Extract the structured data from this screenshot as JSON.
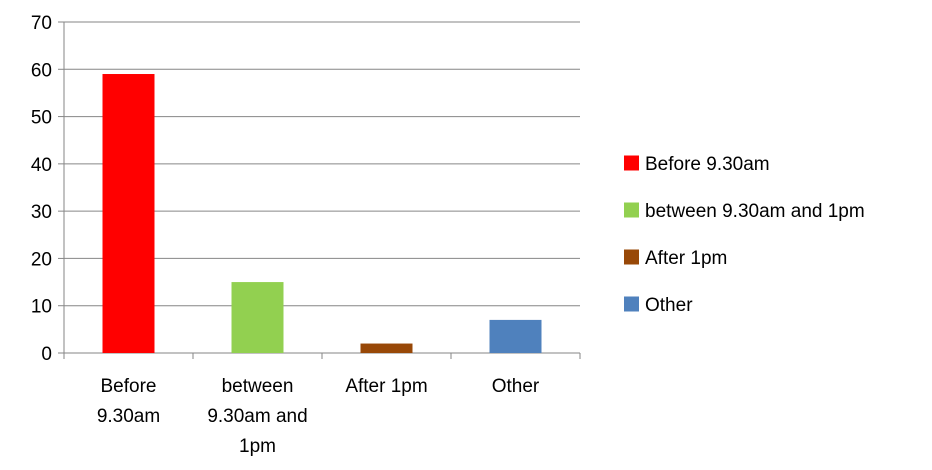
{
  "chart_data": {
    "type": "bar",
    "categories": [
      "Before 9.30am",
      "between 9.30am and 1pm",
      "After 1pm",
      "Other"
    ],
    "category_tick_lines": [
      [
        "Before",
        "9.30am"
      ],
      [
        "between",
        "9.30am and",
        "1pm"
      ],
      [
        "After 1pm"
      ],
      [
        "Other"
      ]
    ],
    "values": [
      59,
      15,
      2,
      7
    ],
    "colors": [
      "#ff0000",
      "#92d050",
      "#984807",
      "#4f81bd"
    ],
    "ylim": [
      0,
      70
    ],
    "yticks": [
      0,
      10,
      20,
      30,
      40,
      50,
      60,
      70
    ],
    "grid": true,
    "legend_position": "right",
    "legend": [
      "Before 9.30am",
      "between 9.30am and 1pm",
      "After 1pm",
      "Other"
    ]
  }
}
